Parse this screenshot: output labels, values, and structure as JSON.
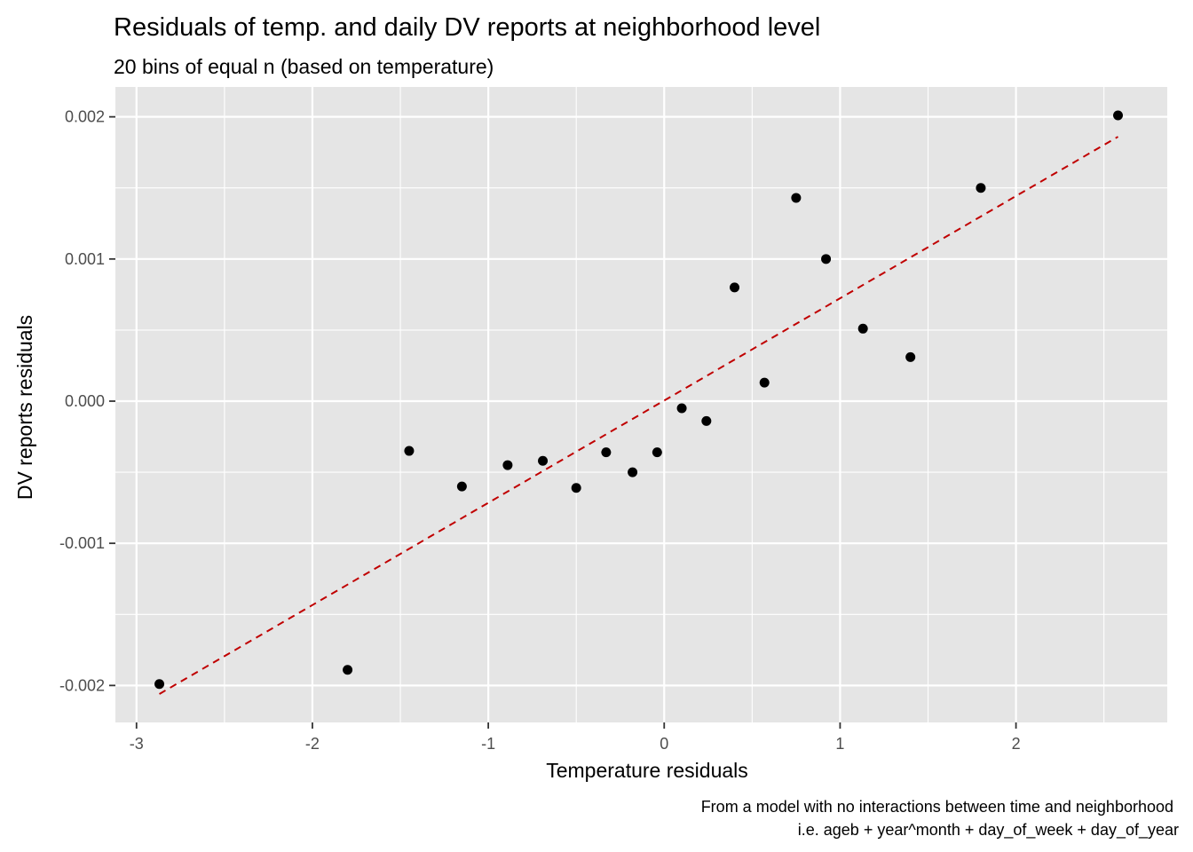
{
  "chart_data": {
    "type": "scatter",
    "title": "Residuals of temp. and daily DV reports at neighborhood level",
    "subtitle": "20 bins of equal n (based on temperature)",
    "xlabel": "Temperature residuals",
    "ylabel": "DV reports residuals",
    "caption_lines": [
      "From a model with no interactions between time and neighborhood",
      "i.e. ageb + year^month + day_of_week + day_of_year"
    ],
    "xlim": [
      -3.12,
      2.86
    ],
    "ylim": [
      -0.00226,
      0.00221
    ],
    "x_ticks": [
      -3,
      -2,
      -1,
      0,
      1,
      2
    ],
    "x_tick_labels": [
      "-3",
      "-2",
      "-1",
      "0",
      "1",
      "2"
    ],
    "y_ticks": [
      -0.002,
      -0.001,
      0.0,
      0.001,
      0.002
    ],
    "y_tick_labels": [
      "-0.002",
      "-0.001",
      "0.000",
      "0.001",
      "0.002"
    ],
    "grid": true,
    "points": {
      "x": [
        -2.87,
        -1.8,
        -1.45,
        -1.15,
        -0.89,
        -0.69,
        -0.5,
        -0.33,
        -0.18,
        -0.04,
        0.1,
        0.24,
        0.4,
        0.57,
        0.75,
        0.92,
        1.13,
        1.4,
        1.8,
        2.58
      ],
      "y": [
        -0.00199,
        -0.00189,
        -0.00035,
        -0.0006,
        -0.00045,
        -0.00042,
        -0.00061,
        -0.00036,
        -0.0005,
        -0.00036,
        -5e-05,
        -0.00014,
        0.0008,
        0.00013,
        0.00143,
        0.001,
        0.00051,
        0.00031,
        0.0015,
        0.00201
      ],
      "color": "#000000"
    },
    "fit_line": {
      "style": "dashed",
      "color": "#c00000",
      "x": [
        -2.87,
        2.58
      ],
      "y": [
        -0.00206,
        0.00186
      ]
    },
    "panel_background": "#e5e5e5",
    "grid_color": "#ffffff"
  }
}
